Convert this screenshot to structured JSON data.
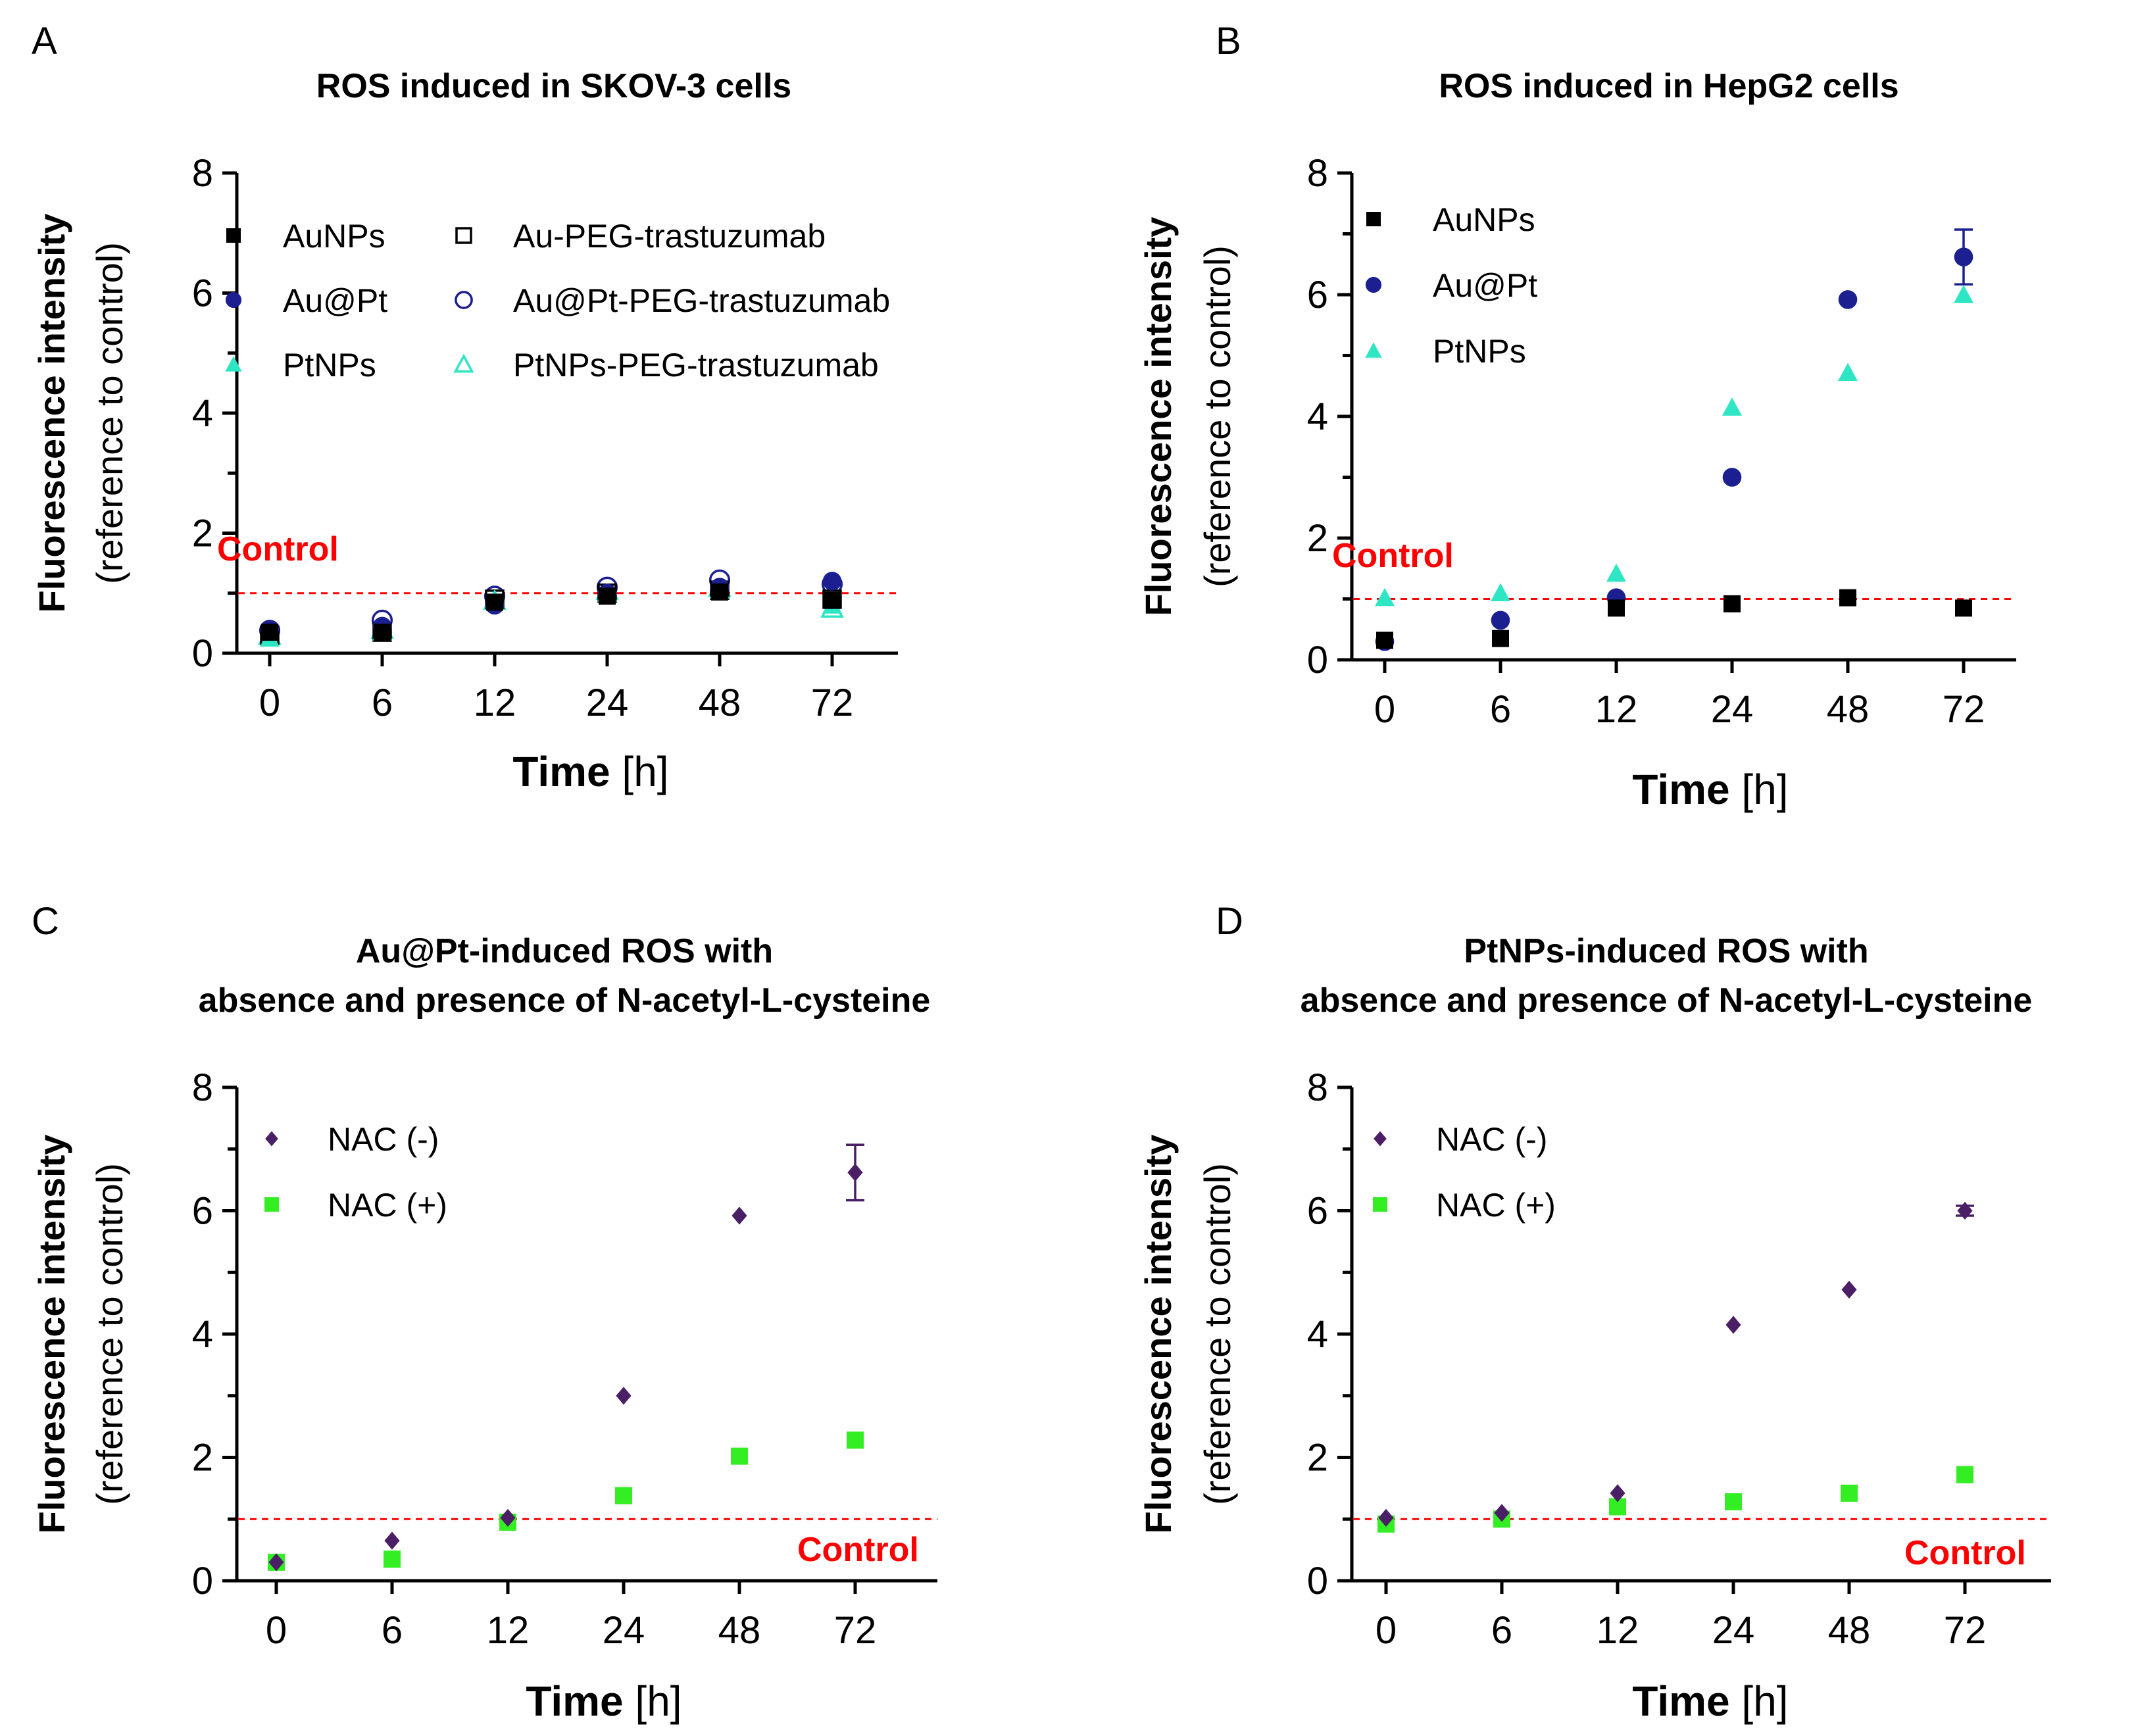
{
  "chart_data": [
    {
      "type": "scatter",
      "panel": "A",
      "title": [
        "ROS induced in SKOV-3 cells"
      ],
      "xlabel_bold": "Time",
      "xlabel_rest": " [h]",
      "ylabel_bold": "Fluorescence intensity",
      "ylabel_rest": "(reference to control)",
      "categories": [
        "0",
        "6",
        "12",
        "24",
        "48",
        "72"
      ],
      "ylim": [
        0,
        8
      ],
      "yticks": [
        0,
        2,
        4,
        6,
        8
      ],
      "control": {
        "label": "Control",
        "value": 1.0,
        "color": "#ff0000",
        "label_pos": "above-left"
      },
      "legend_columns": 2,
      "series": [
        {
          "name": "AuNPs",
          "marker": "square",
          "filled": true,
          "color": "#000000",
          "values": [
            0.35,
            0.35,
            0.85,
            0.95,
            1.02,
            0.88
          ]
        },
        {
          "name": "Au@Pt",
          "marker": "circle",
          "filled": true,
          "color": "#1b1f8f",
          "values": [
            0.4,
            0.45,
            0.8,
            1.0,
            1.1,
            1.2
          ]
        },
        {
          "name": "PtNPs",
          "marker": "triangle",
          "filled": true,
          "color": "#2ee6c4",
          "values": [
            0.25,
            0.35,
            0.9,
            1.0,
            1.05,
            0.8
          ]
        },
        {
          "name": "Au-PEG-trastuzumab",
          "marker": "square",
          "filled": false,
          "color": "#000000",
          "values": [
            0.3,
            0.35,
            0.9,
            1.0,
            1.05,
            0.9
          ]
        },
        {
          "name": "Au@Pt-PEG-trastuzumab",
          "marker": "circle",
          "filled": false,
          "color": "#1b1f8f",
          "values": [
            0.38,
            0.55,
            0.95,
            1.1,
            1.22,
            1.15
          ]
        },
        {
          "name": "PtNPs-PEG-trastuzumab",
          "marker": "triangle",
          "filled": false,
          "color": "#2ee6c4",
          "values": [
            0.3,
            0.4,
            0.88,
            1.05,
            1.1,
            0.75
          ]
        }
      ]
    },
    {
      "type": "scatter",
      "panel": "B",
      "title": [
        "ROS induced in HepG2 cells"
      ],
      "xlabel_bold": "Time",
      "xlabel_rest": " [h]",
      "ylabel_bold": "Fluorescence intensity",
      "ylabel_rest": "(reference to control)",
      "categories": [
        "0",
        "6",
        "12",
        "24",
        "48",
        "72"
      ],
      "ylim": [
        0,
        8
      ],
      "yticks": [
        0,
        2,
        4,
        6,
        8
      ],
      "control": {
        "label": "Control",
        "value": 1.0,
        "color": "#ff0000",
        "label_pos": "above-left"
      },
      "legend_columns": 1,
      "series": [
        {
          "name": "AuNPs",
          "marker": "square",
          "filled": true,
          "color": "#000000",
          "values": [
            0.32,
            0.35,
            0.85,
            0.92,
            1.02,
            0.85
          ]
        },
        {
          "name": "Au@Pt",
          "marker": "circle",
          "filled": true,
          "color": "#1b1f8f",
          "values": [
            0.3,
            0.65,
            1.02,
            3.0,
            5.92,
            6.62
          ],
          "errors": [
            0,
            0,
            0,
            0,
            0,
            0.45
          ]
        },
        {
          "name": "PtNPs",
          "marker": "triangle",
          "filled": true,
          "color": "#2ee6c4",
          "values": [
            1.02,
            1.1,
            1.42,
            4.15,
            4.72,
            6.0
          ]
        }
      ]
    },
    {
      "type": "scatter",
      "panel": "C",
      "title": [
        "Au@Pt-induced ROS with",
        "absence and presence of N-acetyl-L-cysteine"
      ],
      "xlabel_bold": "Time",
      "xlabel_rest": " [h]",
      "ylabel_bold": "Fluorescence intensity",
      "ylabel_rest": "(reference to control)",
      "categories": [
        "0",
        "6",
        "12",
        "24",
        "48",
        "72"
      ],
      "ylim": [
        0,
        8
      ],
      "yticks": [
        0,
        2,
        4,
        6,
        8
      ],
      "control": {
        "label": "Control",
        "value": 1.0,
        "color": "#ff0000",
        "label_pos": "below-right"
      },
      "legend_columns": 1,
      "series": [
        {
          "name": "NAC (-)",
          "marker": "diamond",
          "filled": true,
          "color": "#4b1f66",
          "values": [
            0.3,
            0.65,
            1.02,
            3.0,
            5.92,
            6.62
          ],
          "errors": [
            0,
            0,
            0,
            0,
            0,
            0.45
          ]
        },
        {
          "name": "NAC (+)",
          "marker": "square",
          "filled": true,
          "color": "#33ee22",
          "values": [
            0.3,
            0.35,
            0.95,
            1.38,
            2.02,
            2.28
          ]
        }
      ]
    },
    {
      "type": "scatter",
      "panel": "D",
      "title": [
        "PtNPs-induced ROS with",
        "absence and presence of N-acetyl-L-cysteine"
      ],
      "xlabel_bold": "Time",
      "xlabel_rest": " [h]",
      "ylabel_bold": "Fluorescence intensity",
      "ylabel_rest": "(reference to control)",
      "categories": [
        "0",
        "6",
        "12",
        "24",
        "48",
        "72"
      ],
      "ylim": [
        0,
        8
      ],
      "yticks": [
        0,
        2,
        4,
        6,
        8
      ],
      "control": {
        "label": "Control",
        "value": 1.0,
        "color": "#ff0000",
        "label_pos": "below-right"
      },
      "legend_columns": 1,
      "series": [
        {
          "name": "NAC (-)",
          "marker": "diamond",
          "filled": true,
          "color": "#4b1f66",
          "values": [
            1.02,
            1.1,
            1.42,
            4.15,
            4.72,
            6.0
          ],
          "errors": [
            0,
            0,
            0,
            0,
            0,
            0.08
          ]
        },
        {
          "name": "NAC (+)",
          "marker": "square",
          "filled": true,
          "color": "#33ee22",
          "values": [
            0.92,
            1.0,
            1.2,
            1.28,
            1.42,
            1.72
          ]
        }
      ]
    }
  ]
}
